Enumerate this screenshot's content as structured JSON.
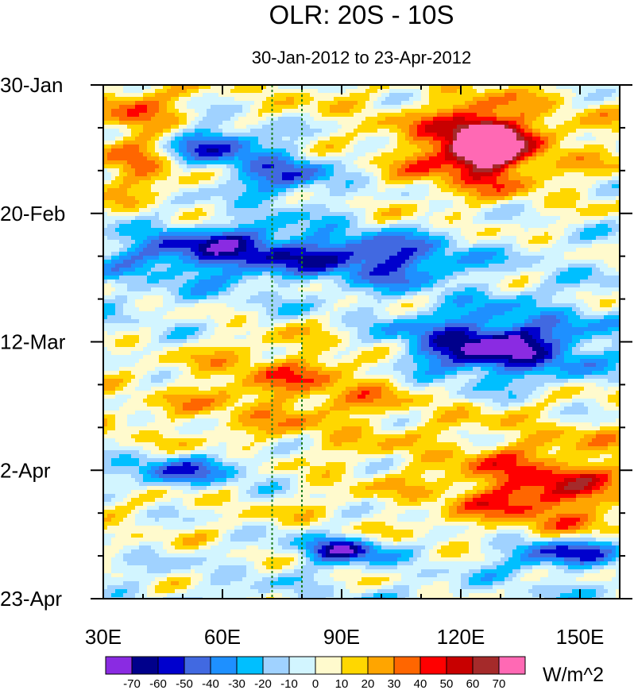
{
  "chart_data": {
    "type": "heatmap",
    "title": "OLR: 20S - 10S",
    "subtitle": "30-Jan-2012 to 23-Apr-2012",
    "xlabel": "",
    "ylabel": "",
    "x_range": [
      30,
      160
    ],
    "x_ticks": [
      {
        "value": 30,
        "label": "30E"
      },
      {
        "value": 60,
        "label": "60E"
      },
      {
        "value": 90,
        "label": "90E"
      },
      {
        "value": 120,
        "label": "120E"
      },
      {
        "value": 150,
        "label": "150E"
      }
    ],
    "y_ticks": [
      {
        "value": "2012-01-30",
        "label": "30-Jan"
      },
      {
        "value": "2012-02-20",
        "label": "20-Feb"
      },
      {
        "value": "2012-03-12",
        "label": "12-Mar"
      },
      {
        "value": "2012-04-02",
        "label": "2-Apr"
      },
      {
        "value": "2012-04-23",
        "label": "23-Apr"
      }
    ],
    "reference_lines": [
      {
        "axis": "x",
        "value": 72.5,
        "color": "#1c7d1c",
        "style": "dotted"
      },
      {
        "axis": "x",
        "value": 80,
        "color": "#1c7d1c",
        "style": "dotted"
      }
    ],
    "colorbar": {
      "units": "W/m^2",
      "levels": [
        -70,
        -60,
        -50,
        -40,
        -30,
        -20,
        -10,
        0,
        10,
        20,
        30,
        40,
        50,
        60,
        70
      ],
      "colors": [
        "#8a2be2",
        "#00008b",
        "#0000cd",
        "#4169e1",
        "#1e90ff",
        "#00bfff",
        "#a0d2ff",
        "#d2f5ff",
        "#fffacd",
        "#ffd700",
        "#ffa500",
        "#ff6600",
        "#ff0000",
        "#c80000",
        "#a52a2a",
        "#ff69b4"
      ]
    },
    "features": [
      {
        "lon": [
          30,
          50
        ],
        "date": [
          "2012-02-01",
          "2012-02-15"
        ],
        "anomaly": 45
      },
      {
        "lon": [
          35,
          72
        ],
        "date": [
          "2012-02-05",
          "2012-02-12"
        ],
        "anomaly": -55
      },
      {
        "lon": [
          60,
          90
        ],
        "date": [
          "2012-02-10",
          "2012-02-18"
        ],
        "anomaly": -45
      },
      {
        "lon": [
          110,
          140
        ],
        "date": [
          "2012-02-03",
          "2012-02-15"
        ],
        "anomaly": 60
      },
      {
        "lon": [
          120,
          132
        ],
        "date": [
          "2012-02-05",
          "2012-02-12"
        ],
        "anomaly": 72
      },
      {
        "lon": [
          35,
          90
        ],
        "date": [
          "2012-02-22",
          "2012-03-01"
        ],
        "anomaly": -55
      },
      {
        "lon": [
          85,
          120
        ],
        "date": [
          "2012-02-24",
          "2012-03-02"
        ],
        "anomaly": -45
      },
      {
        "lon": [
          50,
          110
        ],
        "date": [
          "2012-03-10",
          "2012-03-25"
        ],
        "anomaly": 28
      },
      {
        "lon": [
          105,
          150
        ],
        "date": [
          "2012-03-08",
          "2012-03-18"
        ],
        "anomaly": -72
      },
      {
        "lon": [
          120,
          160
        ],
        "date": [
          "2012-03-30",
          "2012-04-12"
        ],
        "anomaly": 42
      },
      {
        "lon": [
          30,
          70
        ],
        "date": [
          "2012-03-30",
          "2012-04-05"
        ],
        "anomaly": -45
      },
      {
        "lon": [
          80,
          100
        ],
        "date": [
          "2012-04-13",
          "2012-04-17"
        ],
        "anomaly": -62
      },
      {
        "lon": [
          130,
          160
        ],
        "date": [
          "2012-04-13",
          "2012-04-18"
        ],
        "anomaly": -50
      }
    ]
  }
}
